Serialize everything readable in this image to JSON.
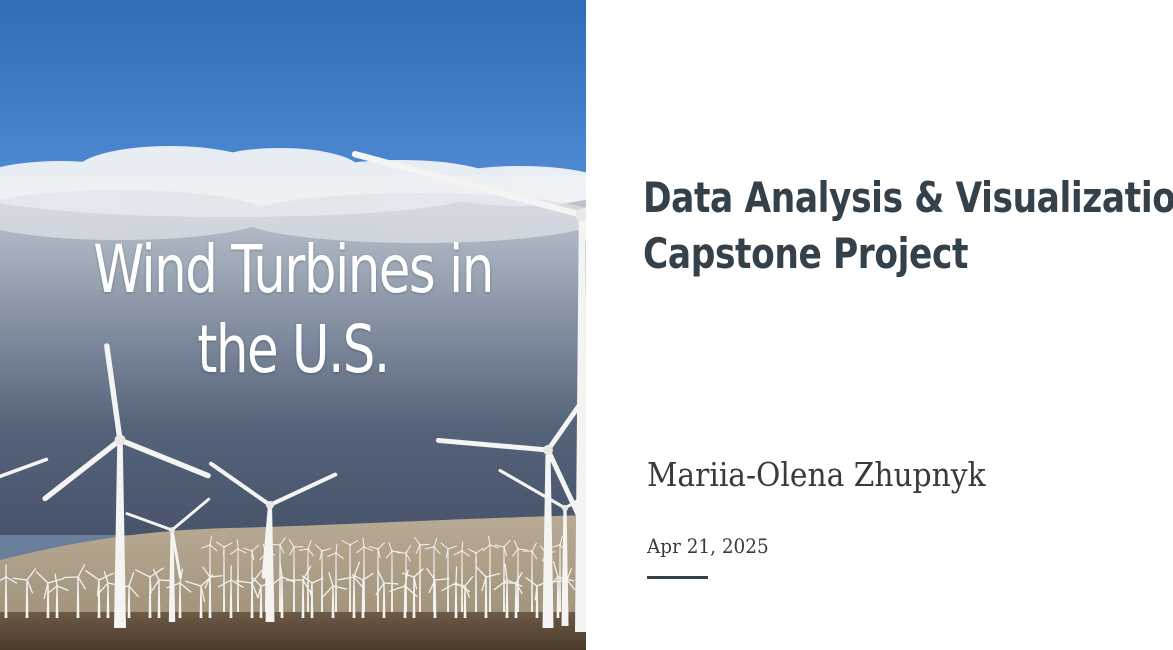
{
  "slide": {
    "cover_title_lines": [
      "Wind Turbines in",
      "the U.S."
    ],
    "subtitle_lines": [
      "Data Analysis & Visualization",
      "Capstone Project"
    ],
    "author": "Mariia-Olena Zhupnyk",
    "date": "Apr 21, 2025",
    "photo": "wind-farm-photo"
  },
  "colors": {
    "sky_top": "#2f6db8",
    "sky_bottom": "#6f9fd6",
    "heading_text": "#34404a",
    "body_text": "#3a3a3a",
    "accent_rule": "#34404a"
  }
}
